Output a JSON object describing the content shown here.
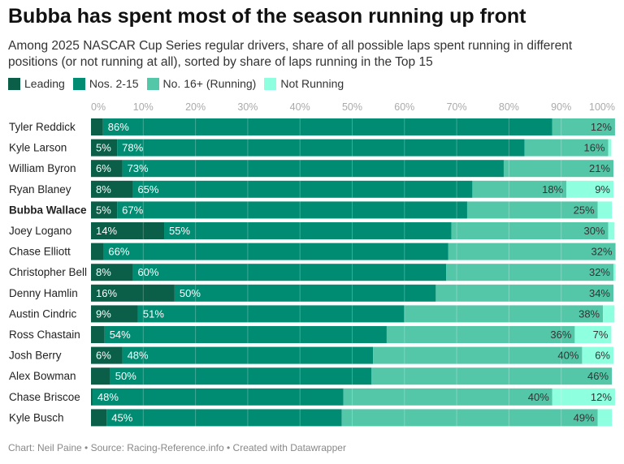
{
  "title": "Bubba has spent most of the season running up front",
  "subtitle": "Among 2025 NASCAR Cup Series regular drivers, share of all possible laps spent running in different positions (or not running at all), sorted by share of laps running in the Top 15",
  "footer": "Chart: Neil Paine • Source: Racing-Reference.info • Created with Datawrapper",
  "chart_data": {
    "type": "bar",
    "orientation": "horizontal-stacked",
    "title": "Bubba has spent most of the season running up front",
    "xlim": [
      0,
      100
    ],
    "ticks": [
      "0%",
      "10%",
      "20%",
      "30%",
      "40%",
      "50%",
      "60%",
      "70%",
      "80%",
      "90%",
      "100%"
    ],
    "legend_position": "top-left",
    "series": [
      {
        "name": "Leading",
        "color": "#0b5e48"
      },
      {
        "name": "Nos. 2-15",
        "color": "#008c72"
      },
      {
        "name": "No. 16+ (Running)",
        "color": "#55c7a9"
      },
      {
        "name": "Not Running",
        "color": "#8effdf"
      }
    ],
    "categories": [
      "Tyler Reddick",
      "Kyle Larson",
      "William Byron",
      "Ryan Blaney",
      "Bubba Wallace",
      "Joey Logano",
      "Chase Elliott",
      "Christopher Bell",
      "Denny Hamlin",
      "Austin Cindric",
      "Ross Chastain",
      "Josh Berry",
      "Alex Bowman",
      "Chase Briscoe",
      "Kyle Busch"
    ],
    "highlight": "Bubba Wallace",
    "values": [
      [
        2.3,
        86,
        12,
        0
      ],
      [
        5,
        78,
        16,
        0.6
      ],
      [
        6,
        73,
        21,
        0
      ],
      [
        8,
        65,
        18,
        9
      ],
      [
        5,
        67,
        25,
        2.7
      ],
      [
        14,
        55,
        30,
        1.2
      ],
      [
        2.4,
        66,
        32,
        0
      ],
      [
        8,
        60,
        32,
        0.4
      ],
      [
        16,
        50,
        34,
        0
      ],
      [
        9,
        51,
        38,
        2.2
      ],
      [
        2.6,
        54,
        36,
        7
      ],
      [
        6,
        48,
        40,
        6
      ],
      [
        3.7,
        50,
        46,
        0
      ],
      [
        0.3,
        48,
        40,
        12
      ],
      [
        3,
        45,
        49,
        2.7
      ]
    ]
  }
}
